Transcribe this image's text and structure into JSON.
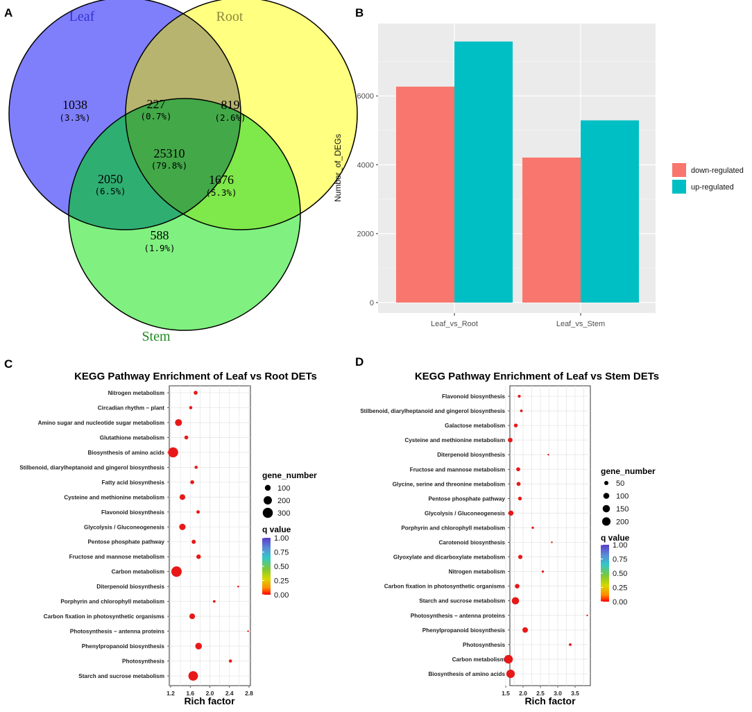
{
  "panels": {
    "a": "A",
    "b": "B",
    "c": "C",
    "d": "D"
  },
  "colors": {
    "leaf_circle": "#7f7ffc",
    "root_circle": "#ffff80",
    "stem_circle": "#80f080",
    "leaf_root": "#b7b46f",
    "leaf_stem": "#2fae72",
    "root_stem": "#7fe84a",
    "all_three": "#43a848",
    "down": "#F8766D",
    "up": "#00BFC4",
    "dot": "#e81818",
    "panel_bg": "#EBEBEB"
  },
  "chart_data": [
    {
      "type": "venn",
      "sets": [
        {
          "name": "Leaf",
          "color": "#3232d2"
        },
        {
          "name": "Root",
          "color": "#8a8a3c"
        },
        {
          "name": "Stem",
          "color": "#1f8a1f"
        }
      ],
      "regions": [
        {
          "sets": "Leaf only",
          "count": "1038",
          "pct": "(3.3%)"
        },
        {
          "sets": "Leaf & Root",
          "count": "227",
          "pct": "(0.7%)"
        },
        {
          "sets": "Root only",
          "count": "819",
          "pct": "(2.6%)"
        },
        {
          "sets": "Leaf & Root & Stem",
          "count": "25310",
          "pct": "(79.8%)"
        },
        {
          "sets": "Leaf & Stem",
          "count": "2050",
          "pct": "(6.5%)"
        },
        {
          "sets": "Root & Stem",
          "count": "1676",
          "pct": "(5.3%)"
        },
        {
          "sets": "Stem only",
          "count": "588",
          "pct": "(1.9%)"
        }
      ]
    },
    {
      "type": "bar",
      "title": "",
      "xlabel": "",
      "ylabel": "Number_of_DEGs",
      "categories": [
        "Leaf_vs_Root",
        "Leaf_vs_Stem"
      ],
      "series": [
        {
          "name": "down-regulated",
          "values": [
            6270,
            4210
          ]
        },
        {
          "name": "up-regulated",
          "values": [
            7580,
            5290
          ]
        }
      ],
      "ylim": [
        0,
        8100
      ],
      "yticks": [
        0,
        2000,
        4000,
        6000
      ],
      "legend": "right"
    },
    {
      "type": "scatter",
      "title": "KEGG Pathway Enrichment of Leaf vs Root DETs",
      "xlabel": "Rich factor",
      "xlim": [
        1.2,
        2.8
      ],
      "xticks": [
        1.2,
        1.6,
        2.0,
        2.4,
        2.8
      ],
      "xtick_labels": [
        "1.2",
        "1.6",
        "2.0",
        "2.4",
        "2.8"
      ],
      "size_legend_title": "gene_number",
      "size_legend": [
        100,
        200,
        300
      ],
      "color_legend_title": "q value",
      "color_legend_ticks": [
        "1.00",
        "0.75",
        "0.50",
        "0.25",
        "0.00"
      ],
      "pathways": [
        "Nitrogen metabolism",
        "Circadian rhythm − plant",
        "Amino sugar and nucleotide sugar metabolism",
        "Glutathione metabolism",
        "Biosynthesis of amino acids",
        "Stilbenoid, diarylheptanoid and gingerol biosynthesis",
        "Fatty acid biosynthesis",
        "Cysteine and methionine metabolism",
        "Flavonoid biosynthesis",
        "Glycolysis / Gluconeogenesis",
        "Pentose phosphate pathway",
        "Fructose and mannose metabolism",
        "Carbon metabolism",
        "Diterpenoid biosynthesis",
        "Porphyrin and chlorophyll metabolism",
        "Carbon fixation in photosynthetic organisms",
        "Photosynthesis − antenna proteins",
        "Phenylpropanoid biosynthesis",
        "Photosynthesis",
        "Starch and sucrose metabolism"
      ],
      "rich_factor": [
        1.71,
        1.61,
        1.36,
        1.52,
        1.25,
        1.72,
        1.64,
        1.44,
        1.76,
        1.44,
        1.67,
        1.77,
        1.32,
        2.58,
        2.09,
        1.64,
        2.78,
        1.77,
        2.42,
        1.66
      ],
      "gene_number": [
        45,
        30,
        140,
        45,
        300,
        30,
        45,
        95,
        35,
        120,
        50,
        60,
        320,
        10,
        20,
        95,
        8,
        130,
        30,
        270
      ]
    },
    {
      "type": "scatter",
      "title": "KEGG Pathway Enrichment of Leaf vs Stem DETs",
      "xlabel": "Rich factor",
      "xlim": [
        1.5,
        3.9
      ],
      "xticks": [
        1.5,
        2.0,
        2.5,
        3.0,
        3.5
      ],
      "xtick_labels": [
        "1.5",
        "2.0",
        "2.5",
        "3.0",
        "3.5"
      ],
      "size_legend_title": "gene_number",
      "size_legend": [
        50,
        100,
        150,
        200
      ],
      "color_legend_title": "q value",
      "color_legend_ticks": [
        "1.00",
        "0.75",
        "0.50",
        "0.25",
        "0.00"
      ],
      "pathways": [
        "Flavonoid biosynthesis",
        "Stilbenoid, diarylheptanoid and gingerol biosynthesis",
        "Galactose metabolism",
        "Cysteine and methionine metabolism",
        "Diterpenoid biosynthesis",
        "Fructose and mannose metabolism",
        "Glycine, serine and threonine metabolism",
        "Pentose phosphate pathway",
        "Glycolysis / Gluconeogenesis",
        "Porphyrin and chlorophyll metabolism",
        "Carotenoid biosynthesis",
        "Glyoxylate and dicarboxylate metabolism",
        "Nitrogen metabolism",
        "Carbon fixation in photosynthetic organisms",
        "Starch and sucrose metabolism",
        "Photosynthesis − antenna proteins",
        "Phenylpropanoid biosynthesis",
        "Photosynthesis",
        "Carbon metabolism",
        "Biosynthesis of amino acids"
      ],
      "rich_factor": [
        1.89,
        1.95,
        1.79,
        1.63,
        2.73,
        1.86,
        1.87,
        1.91,
        1.65,
        2.28,
        2.83,
        1.92,
        2.57,
        1.83,
        1.78,
        3.85,
        2.06,
        3.36,
        1.58,
        1.64
      ],
      "gene_number": [
        25,
        20,
        40,
        60,
        8,
        45,
        45,
        40,
        75,
        15,
        8,
        50,
        15,
        60,
        150,
        5,
        85,
        20,
        210,
        200
      ]
    }
  ]
}
